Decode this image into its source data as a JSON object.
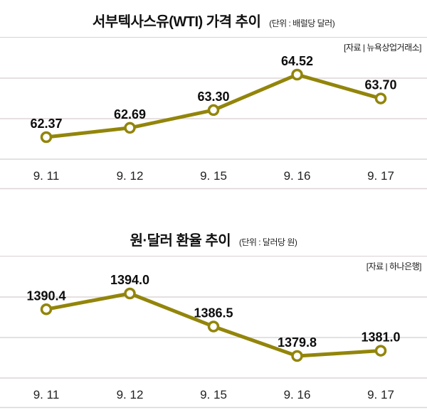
{
  "colors": {
    "accent": "#92850a",
    "grid": "#ddd5d5",
    "title_rule": "#d9d2d2",
    "text": "#111111",
    "marker_fill": "#ffffff"
  },
  "chart_data": [
    {
      "type": "line",
      "title": "서부텍사스유(WTI) 가격 추이",
      "unit_label": "(단위 : 배럴당 달러)",
      "source": "[자료 | 뉴욕상업거래소]",
      "categories": [
        "9. 11",
        "9. 12",
        "9. 15",
        "9. 16",
        "9. 17"
      ],
      "values": [
        62.37,
        62.69,
        63.3,
        64.52,
        63.7
      ],
      "value_labels": [
        "62.37",
        "62.69",
        "63.30",
        "64.52",
        "63.70"
      ],
      "ylim": [
        62.0,
        65.0
      ],
      "grid": "horizontal-only",
      "legend": "none"
    },
    {
      "type": "line",
      "title": "원·달러 환율 추이",
      "unit_label": "(단위 : 달러당 원)",
      "source": "[자료 | 하나은행]",
      "categories": [
        "9. 11",
        "9. 12",
        "9. 15",
        "9. 16",
        "9. 17"
      ],
      "values": [
        1390.4,
        1394.0,
        1386.5,
        1379.8,
        1381.0
      ],
      "value_labels": [
        "1390.4",
        "1394.0",
        "1386.5",
        "1379.8",
        "1381.0"
      ],
      "ylim": [
        1378,
        1396
      ],
      "grid": "horizontal-only",
      "legend": "none"
    }
  ]
}
